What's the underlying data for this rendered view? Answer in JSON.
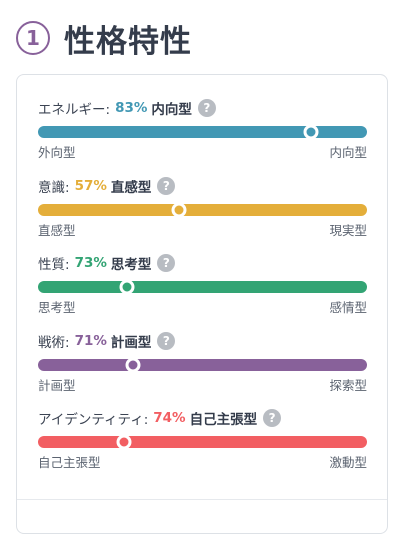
{
  "header": {
    "step_number": "1",
    "title": "性格特性"
  },
  "traits": [
    {
      "name": "エネルギー:",
      "percent": "83%",
      "type": "内向型",
      "left_label": "外向型",
      "right_label": "内向型",
      "color": "#4298b4",
      "level_percent_from_left": 83
    },
    {
      "name": "意識:",
      "percent": "57%",
      "type": "直感型",
      "left_label": "直感型",
      "right_label": "現実型",
      "color": "#e4ae3a",
      "level_percent_from_left": 43
    },
    {
      "name": "性質:",
      "percent": "73%",
      "type": "思考型",
      "left_label": "思考型",
      "right_label": "感情型",
      "color": "#33a474",
      "level_percent_from_left": 27
    },
    {
      "name": "戦術:",
      "percent": "71%",
      "type": "計画型",
      "left_label": "計画型",
      "right_label": "探索型",
      "color": "#88619a",
      "level_percent_from_left": 29
    },
    {
      "name": "アイデンティティ:",
      "percent": "74%",
      "type": "自己主張型",
      "left_label": "自己主張型",
      "right_label": "激動型",
      "color": "#f25e62",
      "level_percent_from_left": 26
    }
  ],
  "icons": {
    "help": "?"
  }
}
